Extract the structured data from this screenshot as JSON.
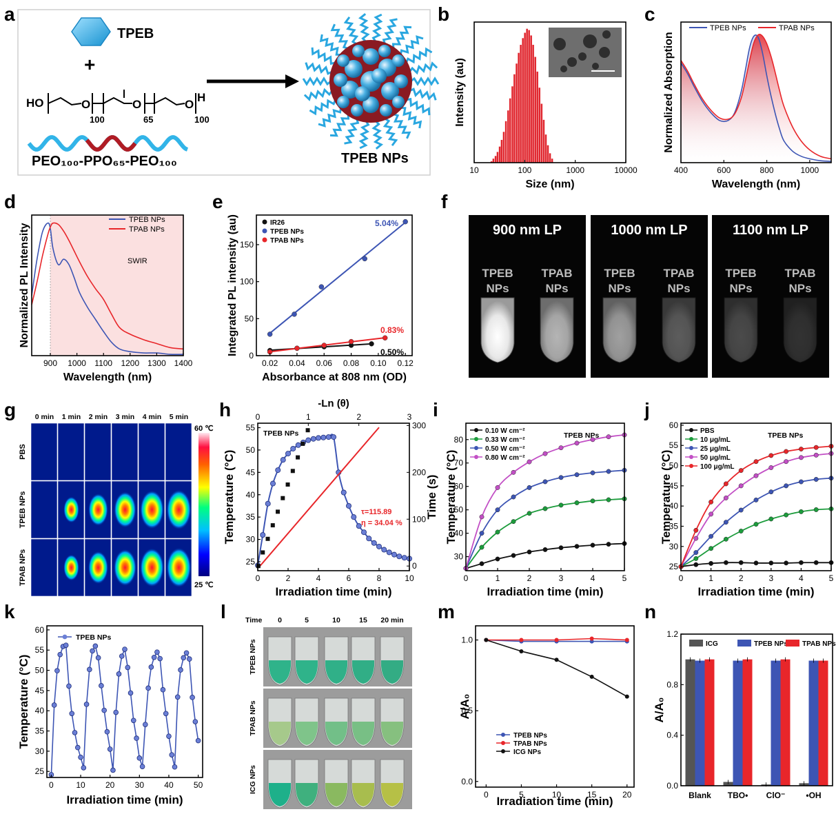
{
  "panel_letters": [
    "a",
    "b",
    "c",
    "d",
    "e",
    "f",
    "g",
    "h",
    "i",
    "j",
    "k",
    "l",
    "m",
    "n"
  ],
  "scheme": {
    "monomer_label": "TPEB",
    "plus": "+",
    "polymer_name": "PEO₁₀₀-PPO₆₅-PEO₁₀₀",
    "formula": {
      "ho": "HO",
      "o1": "O",
      "n1": "100",
      "o2": "O",
      "n2": "65",
      "o3": "O",
      "h": "H",
      "n3": "100"
    },
    "product_label": "TPEB NPs"
  },
  "colors": {
    "tpeb": "#3d55b4",
    "tpab": "#e8262a",
    "icg": "#111111",
    "green": "#1c9c3c",
    "magenta": "#c24fc5",
    "red_fill": "#e0242c"
  },
  "icons": [
    "hexagon-icon",
    "arrow-icon",
    "nanoparticle-icon"
  ],
  "chart_data": [
    {
      "id": "b",
      "type": "bar",
      "xlabel": "Size (nm)",
      "ylabel": "Intensity (au)",
      "xscale": "log",
      "xlim": [
        10,
        10000
      ],
      "xticks": [
        "10",
        "100",
        "1000",
        "10000"
      ],
      "x": [
        22,
        24,
        26.5,
        29,
        32,
        35,
        38.5,
        42.5,
        47,
        51.5,
        57,
        62.5,
        69,
        76,
        83.5,
        92,
        101,
        111,
        122,
        134,
        147,
        162,
        178,
        196,
        216,
        238,
        262,
        288,
        317,
        349
      ],
      "values": [
        0.01,
        0.03,
        0.05,
        0.08,
        0.12,
        0.17,
        0.23,
        0.31,
        0.39,
        0.48,
        0.57,
        0.66,
        0.74,
        0.82,
        0.88,
        0.93,
        0.97,
        1.0,
        0.99,
        0.95,
        0.88,
        0.79,
        0.68,
        0.56,
        0.44,
        0.32,
        0.21,
        0.13,
        0.07,
        0.03
      ],
      "inset": "TEM image"
    },
    {
      "id": "c",
      "type": "area",
      "xlabel": "Wavelength (nm)",
      "ylabel": "Normalized Absorption",
      "xlim": [
        400,
        1100
      ],
      "ylim": [
        0,
        1.1
      ],
      "xticks": [
        "400",
        "600",
        "800",
        "1000"
      ],
      "series": [
        {
          "name": "TPEB NPs",
          "x": [
            400,
            430,
            460,
            500,
            540,
            580,
            620,
            650,
            680,
            700,
            720,
            740,
            760,
            780,
            800,
            820,
            840,
            860,
            880,
            920,
            960,
            1000,
            1050,
            1100
          ],
          "values": [
            0.78,
            0.7,
            0.6,
            0.48,
            0.39,
            0.33,
            0.33,
            0.39,
            0.55,
            0.72,
            0.9,
            0.99,
            0.98,
            0.86,
            0.68,
            0.52,
            0.38,
            0.26,
            0.17,
            0.09,
            0.05,
            0.03,
            0.015,
            0.01
          ]
        },
        {
          "name": "TPAB NPs",
          "x": [
            400,
            430,
            460,
            500,
            540,
            580,
            620,
            650,
            680,
            700,
            720,
            740,
            760,
            780,
            800,
            820,
            840,
            860,
            880,
            920,
            960,
            1000,
            1050,
            1100
          ],
          "values": [
            0.8,
            0.72,
            0.62,
            0.5,
            0.41,
            0.35,
            0.34,
            0.38,
            0.5,
            0.64,
            0.8,
            0.94,
            1.0,
            0.99,
            0.93,
            0.83,
            0.7,
            0.56,
            0.44,
            0.28,
            0.17,
            0.1,
            0.05,
            0.03
          ]
        }
      ]
    },
    {
      "id": "d",
      "type": "line",
      "xlabel": "Wavelength (nm)",
      "ylabel": "Normalized PL Intensity",
      "xlim": [
        830,
        1400
      ],
      "ylim": [
        0,
        1.05
      ],
      "xticks": [
        "900",
        "1000",
        "1100",
        "1200",
        "1300",
        "1400"
      ],
      "band_start": 900,
      "band_label": "SWIR",
      "series": [
        {
          "name": "TPEB NPs",
          "x": [
            830,
            850,
            870,
            890,
            900,
            910,
            930,
            950,
            970,
            990,
            1010,
            1040,
            1070,
            1100,
            1130,
            1160,
            1200,
            1250,
            1300,
            1350,
            1400
          ],
          "values": [
            0.45,
            0.72,
            0.92,
            0.99,
            0.95,
            0.8,
            0.68,
            0.72,
            0.68,
            0.58,
            0.47,
            0.36,
            0.27,
            0.18,
            0.1,
            0.05,
            0.03,
            0.02,
            0.02,
            0.01,
            0.01
          ]
        },
        {
          "name": "TPAB NPs",
          "x": [
            830,
            850,
            870,
            890,
            900,
            910,
            930,
            950,
            970,
            990,
            1010,
            1040,
            1070,
            1100,
            1130,
            1160,
            1200,
            1250,
            1300,
            1350,
            1400
          ],
          "values": [
            0.38,
            0.55,
            0.74,
            0.9,
            0.96,
            0.99,
            0.98,
            0.93,
            0.86,
            0.78,
            0.7,
            0.59,
            0.5,
            0.42,
            0.31,
            0.21,
            0.16,
            0.12,
            0.09,
            0.06,
            0.05
          ]
        }
      ]
    },
    {
      "id": "e",
      "type": "scatter",
      "xlabel": "Absorbance at 808 nm (OD)",
      "ylabel": "Integrated PL intensity (au)",
      "xlim": [
        0.01,
        0.125
      ],
      "ylim": [
        0,
        190
      ],
      "xticks": [
        "0.02",
        "0.04",
        "0.06",
        "0.08",
        "0.10",
        "0.12"
      ],
      "yticks": [
        "0",
        "50",
        "100",
        "150"
      ],
      "series": [
        {
          "name": "IR26",
          "label": "0.50%",
          "x": [
            0.02,
            0.04,
            0.06,
            0.08,
            0.095
          ],
          "values": [
            7,
            10,
            12,
            14,
            16
          ]
        },
        {
          "name": "TPEB NPs",
          "label": "5.04%",
          "x": [
            0.02,
            0.038,
            0.058,
            0.09,
            0.12
          ],
          "values": [
            29,
            56,
            93,
            131,
            181
          ]
        },
        {
          "name": "TPAB NPs",
          "label": "0.83%",
          "x": [
            0.02,
            0.04,
            0.06,
            0.08,
            0.105
          ],
          "values": [
            5,
            10,
            14,
            19,
            24
          ]
        }
      ]
    },
    {
      "id": "h",
      "type": "line",
      "xlabel": "Irradiation time (min)",
      "ylabel": "Temperature (°C)",
      "x2label": "-Ln (θ)",
      "y2label": "Time (s)",
      "xlim": [
        0,
        10
      ],
      "ylim": [
        23,
        56
      ],
      "x2lim": [
        0,
        3
      ],
      "y2lim": [
        -10,
        305
      ],
      "xticks": [
        "0",
        "2",
        "4",
        "6",
        "8",
        "10"
      ],
      "yticks": [
        "25",
        "30",
        "35",
        "40",
        "45",
        "50",
        "55"
      ],
      "x2ticks": [
        "0",
        "1",
        "2",
        "3"
      ],
      "y2ticks": [
        "0",
        "100",
        "200",
        "300"
      ],
      "legend": "TPEB NPs",
      "annotation_tau": "τ=115.89",
      "annotation_eta": "η = 34.04 %",
      "series": [
        {
          "name": "TPEB NPs heating/cooling",
          "x": [
            0,
            0.33,
            0.67,
            1,
            1.33,
            1.67,
            2,
            2.33,
            2.67,
            3,
            3.33,
            3.67,
            4,
            4.33,
            4.67,
            5,
            5.33,
            5.67,
            6,
            6.33,
            6.67,
            7,
            7.33,
            7.67,
            8,
            8.33,
            8.67,
            9,
            9.33,
            9.67,
            10
          ],
          "values": [
            24.2,
            31,
            38,
            42.5,
            45.5,
            47.8,
            49.2,
            50.3,
            51.1,
            51.7,
            52.2,
            52.5,
            52.7,
            52.8,
            52.9,
            52.9,
            45,
            40.5,
            37.5,
            35,
            33,
            31.6,
            30.2,
            29.2,
            28.4,
            27.7,
            27.1,
            26.6,
            26.2,
            25.9,
            25.7
          ]
        },
        {
          "name": "-Ln(θ) vs time",
          "x": [
            0.04,
            0.33,
            0.66,
            0.99,
            1.32,
            1.65,
            1.98,
            2.31,
            2.64,
            2.97,
            3.3
          ],
          "values": [
            0,
            29,
            58,
            87,
            116,
            145,
            174,
            203,
            232,
            261,
            290
          ]
        }
      ]
    },
    {
      "id": "i",
      "type": "line",
      "xlabel": "Irradiation time (min)",
      "ylabel": "Temperature (°C)",
      "xlim": [
        0,
        5
      ],
      "ylim": [
        24,
        87
      ],
      "xticks": [
        "0",
        "1",
        "2",
        "3",
        "4",
        "5"
      ],
      "yticks": [
        "30",
        "40",
        "50",
        "60",
        "70",
        "80"
      ],
      "legend_title": "TPEB NPs",
      "x": [
        0,
        0.5,
        1,
        1.5,
        2,
        2.5,
        3,
        3.5,
        4,
        4.5,
        5
      ],
      "series": [
        {
          "name": "0.10 W cm⁻²",
          "values": [
            25,
            27,
            29,
            30.5,
            32,
            33,
            33.8,
            34.4,
            34.9,
            35.3,
            35.6
          ]
        },
        {
          "name": "0.33 W cm⁻²",
          "values": [
            25,
            34,
            40.5,
            45,
            48.5,
            50.5,
            52,
            53,
            53.8,
            54.3,
            54.7
          ]
        },
        {
          "name": "0.50 W cm⁻²",
          "values": [
            25,
            40,
            50,
            55.5,
            59.5,
            62,
            63.8,
            65,
            65.8,
            66.4,
            66.9
          ]
        },
        {
          "name": "0.80 W cm⁻²",
          "values": [
            25,
            47,
            59.5,
            66,
            70.5,
            74,
            76.5,
            78.5,
            80,
            81.2,
            82
          ]
        }
      ]
    },
    {
      "id": "j",
      "type": "line",
      "xlabel": "Irradiation time (min)",
      "ylabel": "Temperature (°C)",
      "xlim": [
        0,
        5
      ],
      "ylim": [
        24,
        60.5
      ],
      "xticks": [
        "0",
        "1",
        "2",
        "3",
        "4",
        "5"
      ],
      "yticks": [
        "25",
        "30",
        "35",
        "40",
        "45",
        "50",
        "55",
        "60"
      ],
      "legend_title": "TPEB NPs",
      "x": [
        0,
        0.5,
        1,
        1.5,
        2,
        2.5,
        3,
        3.5,
        4,
        4.5,
        5
      ],
      "series": [
        {
          "name": "PBS",
          "values": [
            25,
            25.5,
            25.8,
            26,
            26,
            25.9,
            25.9,
            25.9,
            26,
            26,
            26
          ]
        },
        {
          "name": "10 μg/mL",
          "values": [
            25,
            27,
            29.5,
            31.8,
            33.8,
            35.5,
            36.8,
            37.8,
            38.6,
            39.1,
            39.3
          ]
        },
        {
          "name": "25 μg/mL",
          "values": [
            25,
            28.5,
            32.5,
            36,
            39,
            41.5,
            43.5,
            45,
            46,
            46.6,
            46.9
          ]
        },
        {
          "name": "50 μg/mL",
          "values": [
            25,
            32,
            38,
            42,
            45,
            47.5,
            49.5,
            51,
            52,
            52.6,
            53
          ]
        },
        {
          "name": "100 μg/mL",
          "values": [
            25,
            34,
            41,
            45.5,
            48.8,
            51,
            52.5,
            53.5,
            54.1,
            54.5,
            54.8
          ]
        }
      ]
    },
    {
      "id": "k",
      "type": "line",
      "xlabel": "Irradiation time (min)",
      "ylabel": "Temperature (°C)",
      "xlim": [
        -1.5,
        51.5
      ],
      "ylim": [
        23.5,
        61
      ],
      "xticks": [
        "0",
        "10",
        "20",
        "30",
        "40",
        "50"
      ],
      "yticks": [
        "25",
        "30",
        "35",
        "40",
        "45",
        "50",
        "55",
        "60"
      ],
      "series": [
        {
          "name": "TPEB NPs",
          "x": [
            0,
            1,
            2,
            3,
            4,
            5,
            6,
            7,
            8,
            9,
            10,
            11,
            12,
            13,
            14,
            15,
            16,
            17,
            18,
            19,
            20,
            21,
            22,
            23,
            24,
            25,
            26,
            27,
            28,
            29,
            30,
            31,
            32,
            33,
            34,
            35,
            36,
            37,
            38,
            39,
            40,
            41,
            42,
            43,
            44,
            45,
            46,
            47,
            48,
            49,
            50
          ],
          "values": [
            24.2,
            41.4,
            49.9,
            53.9,
            55.9,
            56.2,
            46.1,
            39.3,
            34.6,
            30.9,
            28.5,
            25.9,
            41.6,
            50.2,
            54.8,
            56,
            53.1,
            46.2,
            40.1,
            34.8,
            30.5,
            25.3,
            39.6,
            49.1,
            53.5,
            55.2,
            50.7,
            44.4,
            37.6,
            33.2,
            28.3,
            26.2,
            36.6,
            45.6,
            50.8,
            53.2,
            54.5,
            52.9,
            45.2,
            39.3,
            33.7,
            29.1,
            26.1,
            43.4,
            50.1,
            53.1,
            54.3,
            52.8,
            43.3,
            37.3,
            32.6
          ]
        }
      ]
    },
    {
      "id": "m",
      "type": "line",
      "xlabel": "Irradiation time (min)",
      "ylabel": "A/A₀",
      "xlim": [
        -1.5,
        21
      ],
      "ylim": [
        -0.04,
        1.1
      ],
      "xticks": [
        "0",
        "5",
        "10",
        "15",
        "20"
      ],
      "yticks": [
        "0.0",
        "0.5",
        "1.0"
      ],
      "x": [
        0,
        5,
        10,
        15,
        20
      ],
      "series": [
        {
          "name": "TPEB NPs",
          "values": [
            1.0,
            0.99,
            0.99,
            0.99,
            0.99
          ]
        },
        {
          "name": "TPAB NPs",
          "values": [
            1.0,
            1.0,
            1.0,
            1.01,
            1.0
          ]
        },
        {
          "name": "ICG NPs",
          "values": [
            1.0,
            0.92,
            0.86,
            0.74,
            0.6
          ]
        }
      ]
    },
    {
      "id": "n",
      "type": "bar",
      "xlabel": "",
      "ylabel": "A/A₀",
      "ylim": [
        0,
        1.2
      ],
      "yticks": [
        "0.0",
        "0.4",
        "0.8",
        "1.2"
      ],
      "categories": [
        "Blank",
        "TBO•",
        "ClO⁻",
        "•OH"
      ],
      "series": [
        {
          "name": "ICG",
          "values": [
            1.0,
            0.03,
            0.01,
            0.02
          ]
        },
        {
          "name": "TPEB NPs",
          "values": [
            0.99,
            0.99,
            0.99,
            0.99
          ]
        },
        {
          "name": "TPAB NPs",
          "values": [
            1.0,
            1.0,
            1.0,
            0.99
          ]
        }
      ]
    }
  ],
  "panel_f": {
    "filters": [
      "900 nm LP",
      "1000 nm LP",
      "1100 nm LP"
    ],
    "tube_labels": [
      "TPEB\nNPs",
      "TPAB\nNPs"
    ],
    "brightness": [
      [
        1.0,
        0.7
      ],
      [
        0.62,
        0.35
      ],
      [
        0.28,
        0.18
      ]
    ]
  },
  "panel_g": {
    "times": [
      "0 min",
      "1 min",
      "2 min",
      "3 min",
      "4 min",
      "5 min"
    ],
    "rows": [
      "PBS",
      "TPEB NPs",
      "TPAB NPs"
    ],
    "colorbar_max": "60 ℃",
    "colorbar_min": "25 ℃",
    "intensity": [
      [
        0,
        0,
        0,
        0,
        0,
        0
      ],
      [
        0,
        0.45,
        0.7,
        0.85,
        0.95,
        1.0
      ],
      [
        0,
        0.45,
        0.72,
        0.88,
        0.96,
        1.0
      ]
    ]
  },
  "panel_l": {
    "time_label": "Time",
    "times": [
      "0",
      "5",
      "10",
      "15",
      "20 min"
    ],
    "rows": [
      "TPEB NPs",
      "TPAB NPs",
      "ICG NPs"
    ],
    "tube_colors": [
      [
        "#2fb38a",
        "#2fb38a",
        "#30b088",
        "#31ae86",
        "#33ac84"
      ],
      [
        "#a6c98b",
        "#7fc48a",
        "#72bf88",
        "#78bf85",
        "#86c07f"
      ],
      [
        "#1eb08a",
        "#3fb07e",
        "#8ab960",
        "#a8bd4e",
        "#b6c046"
      ]
    ]
  }
}
